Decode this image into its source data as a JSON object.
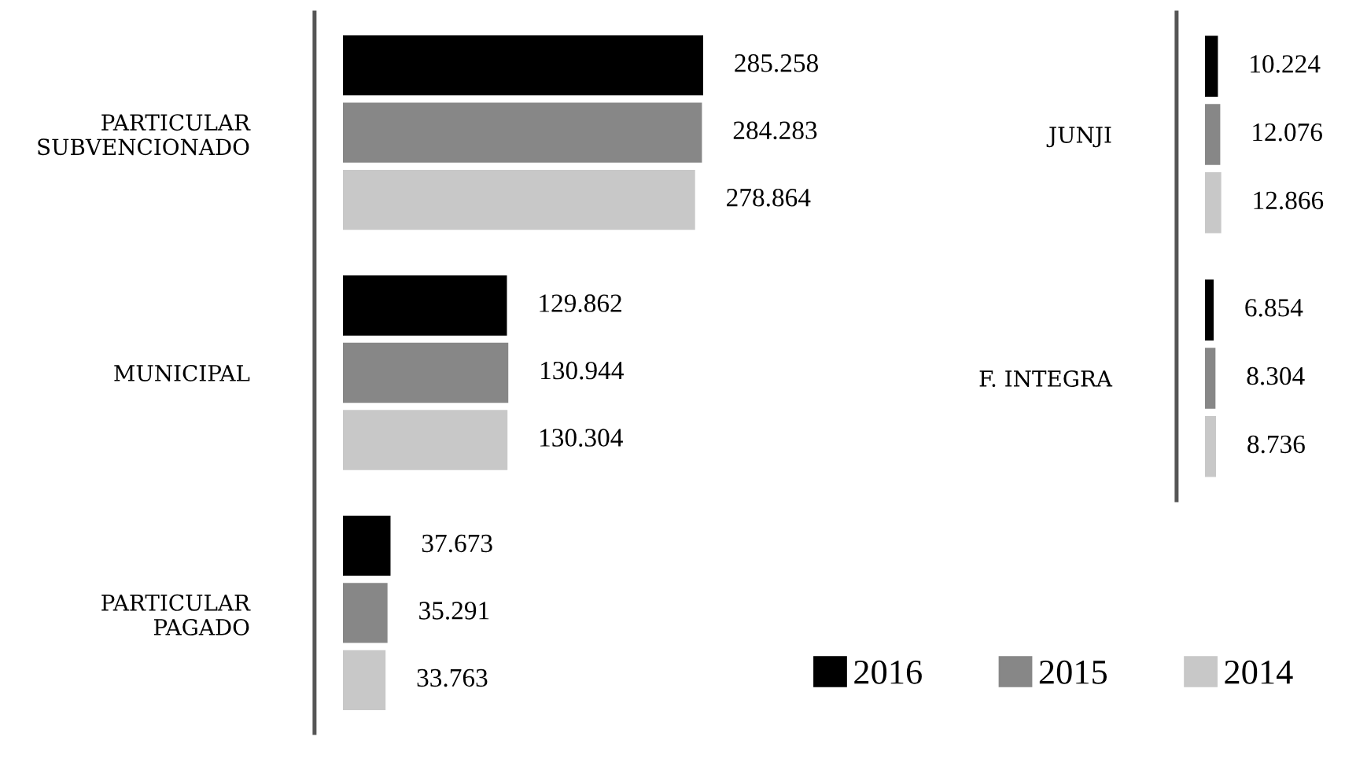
{
  "chart_data": [
    {
      "type": "bar",
      "orientation": "horizontal",
      "categories": [
        "PARTICULAR\nSUBVENCIONADO",
        "MUNICIPAL",
        "PARTICULAR\nPAGADO"
      ],
      "series": [
        {
          "name": "2016",
          "color": "#000000",
          "values": [
            285258,
            129862,
            37673
          ],
          "value_labels": [
            "285.258",
            "129.862",
            "37.673"
          ]
        },
        {
          "name": "2015",
          "color": "#878787",
          "values": [
            284283,
            130944,
            35291
          ],
          "value_labels": [
            "284.283",
            "130.944",
            "35.291"
          ]
        },
        {
          "name": "2014",
          "color": "#c8c8c8",
          "values": [
            278864,
            130304,
            33763
          ],
          "value_labels": [
            "278.864",
            "130.304",
            "33.763"
          ]
        }
      ],
      "legend": "bottom right",
      "grid": false,
      "tick_labels": "y"
    },
    {
      "type": "bar",
      "orientation": "horizontal",
      "categories": [
        "JUNJI",
        "F. INTEGRA"
      ],
      "series": [
        {
          "name": "2016",
          "color": "#000000",
          "values": [
            10224,
            6854
          ],
          "value_labels": [
            "10.224",
            "6.854"
          ]
        },
        {
          "name": "2015",
          "color": "#878787",
          "values": [
            12076,
            8304
          ],
          "value_labels": [
            "12.076",
            "8.304"
          ]
        },
        {
          "name": "2014",
          "color": "#c8c8c8",
          "values": [
            12866,
            8736
          ],
          "value_labels": [
            "12.866",
            "8.736"
          ]
        }
      ],
      "legend": false,
      "grid": false,
      "tick_labels": "y"
    }
  ]
}
